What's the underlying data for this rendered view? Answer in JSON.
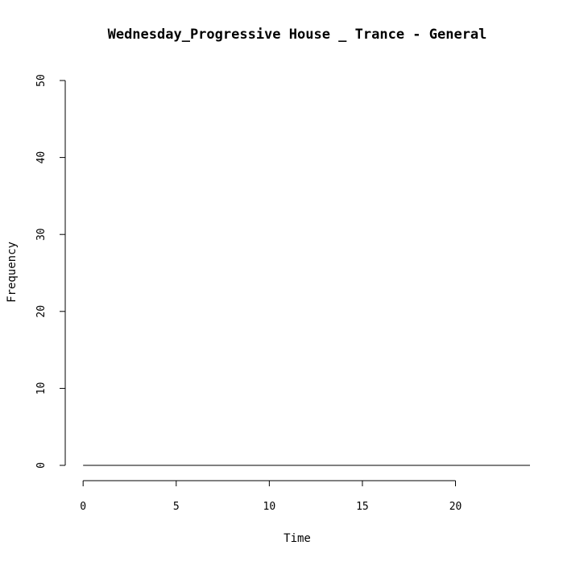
{
  "chart_data": {
    "type": "line",
    "title": "Wednesday_Progressive House _ Trance - General",
    "xlabel": "Time",
    "ylabel": "Frequency",
    "xlim": [
      -0.96,
      24.0
    ],
    "ylim": [
      0,
      50
    ],
    "xticks": [
      0,
      5,
      10,
      15,
      20
    ],
    "yticks": [
      0,
      10,
      20,
      30,
      40,
      50
    ],
    "x_tick_labels": [
      "0",
      "5",
      "10",
      "15",
      "20"
    ],
    "y_tick_labels": [
      "0",
      "10",
      "20",
      "30",
      "40",
      "50"
    ],
    "grid": false,
    "series": [
      {
        "x": [
          0,
          24
        ],
        "y": [
          0,
          0
        ]
      }
    ]
  }
}
